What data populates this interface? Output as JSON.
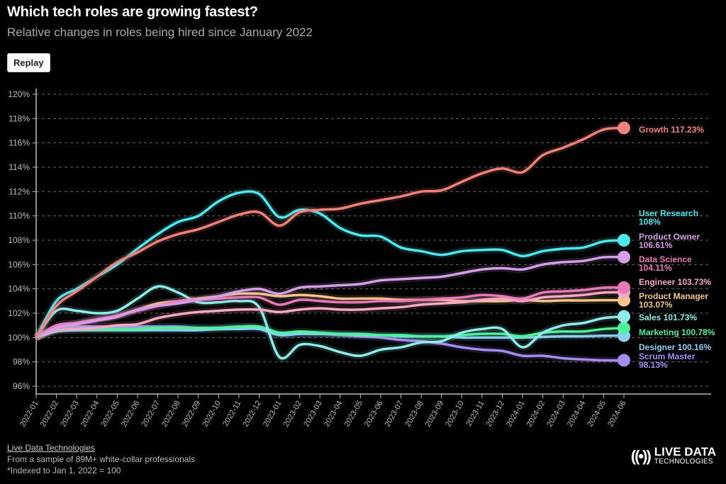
{
  "header": {
    "title": "Which tech roles are growing fastest?",
    "subtitle": "Relative changes in roles being hired since January 2022",
    "replay_label": "Replay"
  },
  "footer": {
    "source_link": "Live Data Technologies",
    "sample": "From a sample of 89M+ white-collar professionals",
    "note": "*Indexed to Jan 1, 2022 = 100"
  },
  "logo": {
    "line1": "LIVE DATA",
    "line2": "TECHNOLOGIES"
  },
  "chart_data": {
    "type": "line",
    "title": "Which tech roles are growing fastest?",
    "xlabel": "",
    "ylabel": "",
    "ylim": [
      96,
      120
    ],
    "yticks": [
      96,
      98,
      100,
      102,
      104,
      106,
      108,
      110,
      112,
      114,
      116,
      118,
      120
    ],
    "ytick_suffix": "%",
    "grid": true,
    "x": [
      "2022-01",
      "2022-02",
      "2022-03",
      "2022-04",
      "2022-05",
      "2022-06",
      "2022-07",
      "2022-08",
      "2022-09",
      "2022-10",
      "2022-11",
      "2022-12",
      "2023-01",
      "2023-02",
      "2023-03",
      "2023-04",
      "2023-05",
      "2023-06",
      "2023-07",
      "2023-08",
      "2023-09",
      "2023-10",
      "2023-11",
      "2023-12",
      "2024-01",
      "2024-02",
      "2024-03",
      "2024-04",
      "2024-05",
      "2024-06"
    ],
    "series": [
      {
        "name": "Growth",
        "label": "Growth 117.23%",
        "label_lines": [
          "Growth 117.23%"
        ],
        "color": "#f0827c",
        "values": [
          100,
          102.6,
          103.8,
          105,
          106.2,
          107,
          107.9,
          108.5,
          108.9,
          109.5,
          110.1,
          110.3,
          109.2,
          110.3,
          110.5,
          110.6,
          111,
          111.3,
          111.6,
          112,
          112.1,
          112.8,
          113.5,
          113.9,
          113.6,
          115,
          115.6,
          116.3,
          117.1,
          117.23
        ]
      },
      {
        "name": "User Research",
        "label_lines": [
          "User Research",
          "108%"
        ],
        "color": "#4ee8ef",
        "values": [
          100,
          103,
          104,
          105,
          106,
          107.3,
          108.5,
          109.5,
          110,
          111.2,
          111.9,
          111.8,
          109.9,
          110.5,
          110.2,
          109,
          108.4,
          108.3,
          107.4,
          107.1,
          106.8,
          107.1,
          107.2,
          107.2,
          106.7,
          107.1,
          107.3,
          107.4,
          107.9,
          108
        ]
      },
      {
        "name": "Product Owner",
        "label_lines": [
          "Product Owner",
          "106.61%"
        ],
        "color": "#d59ee8",
        "values": [
          100,
          100.8,
          101.1,
          101.4,
          101.7,
          102.3,
          102.6,
          102.8,
          103.1,
          103.4,
          103.8,
          104,
          103.6,
          104.1,
          104.2,
          104.3,
          104.4,
          104.7,
          104.8,
          104.9,
          105,
          105.3,
          105.6,
          105.7,
          105.6,
          106,
          106.2,
          106.3,
          106.6,
          106.61
        ]
      },
      {
        "name": "Data Science",
        "label_lines": [
          "Data Science",
          "104.11%"
        ],
        "color": "#e879b9",
        "values": [
          100,
          101,
          101.2,
          101.5,
          101.8,
          102.2,
          102.6,
          103,
          103.1,
          103.2,
          103.3,
          103.3,
          102.7,
          103.1,
          103,
          102.9,
          102.9,
          103,
          103,
          103.1,
          103.2,
          103.3,
          103.5,
          103.4,
          103.2,
          103.7,
          103.8,
          103.9,
          104.1,
          104.11
        ]
      },
      {
        "name": "Engineer",
        "label_lines": [
          "Engineer 103.73%"
        ],
        "color": "#f7a9c4",
        "values": [
          100,
          100.6,
          100.7,
          100.8,
          101,
          101.1,
          101.6,
          101.9,
          102.1,
          102.2,
          102.3,
          102.3,
          102.1,
          102.3,
          102.4,
          102.3,
          102.3,
          102.4,
          102.5,
          102.7,
          102.8,
          102.9,
          103.1,
          103.2,
          103,
          103.3,
          103.4,
          103.5,
          103.7,
          103.73
        ]
      },
      {
        "name": "Product Manager",
        "label_lines": [
          "Product Manager",
          "103.07%"
        ],
        "color": "#f5c68a",
        "values": [
          100,
          100.8,
          101.2,
          101.5,
          101.8,
          102.3,
          102.8,
          103,
          103.2,
          103.4,
          103.6,
          103.6,
          103.4,
          103.5,
          103.4,
          103.2,
          103.2,
          103.2,
          103.1,
          103.1,
          103.1,
          103,
          103,
          103,
          103.1,
          103,
          103.05,
          103.05,
          103.07,
          103.07
        ]
      },
      {
        "name": "Sales",
        "label_lines": [
          "Sales 101.73%"
        ],
        "color": "#8eecea",
        "values": [
          100,
          102.2,
          102.2,
          102,
          102.2,
          103.2,
          104.2,
          103.7,
          102.9,
          102.9,
          103,
          102.5,
          98.4,
          99.4,
          99.3,
          98.8,
          98.5,
          99,
          99.2,
          99.6,
          99.7,
          100.4,
          100.7,
          100.7,
          99.2,
          100.4,
          101,
          101.2,
          101.6,
          101.73
        ]
      },
      {
        "name": "Marketing",
        "label_lines": [
          "Marketing 100.78%"
        ],
        "color": "#4ef29a",
        "values": [
          100,
          100.6,
          100.7,
          100.7,
          100.7,
          100.7,
          100.8,
          100.8,
          100.8,
          100.8,
          100.9,
          100.9,
          100.4,
          100.5,
          100.4,
          100.3,
          100.3,
          100.2,
          100.2,
          100.1,
          100.1,
          100.2,
          100.3,
          100.3,
          100.1,
          100.4,
          100.5,
          100.5,
          100.7,
          100.78
        ]
      },
      {
        "name": "Designer",
        "label_lines": [
          "Designer 100.16%"
        ],
        "color": "#8ccff5",
        "values": [
          100,
          100.5,
          100.6,
          100.6,
          100.6,
          100.6,
          100.6,
          100.6,
          100.6,
          100.7,
          100.7,
          100.7,
          100.2,
          100.3,
          100.3,
          100.3,
          100.2,
          100.2,
          100.1,
          100.1,
          100.1,
          100,
          100,
          100,
          100,
          100.05,
          100.1,
          100.1,
          100.15,
          100.16
        ]
      },
      {
        "name": "Scrum Master",
        "label_lines": [
          "Scrum Master",
          "98.13%"
        ],
        "color": "#a58cf0",
        "values": [
          100,
          100.8,
          100.9,
          100.9,
          100.9,
          100.9,
          100.9,
          100.9,
          100.8,
          100.8,
          100.9,
          100.8,
          100.3,
          100.3,
          100.3,
          100.2,
          100.1,
          100,
          99.8,
          99.7,
          99.5,
          99.2,
          99,
          98.9,
          98.5,
          98.5,
          98.3,
          98.2,
          98.13,
          98.13
        ]
      }
    ]
  }
}
